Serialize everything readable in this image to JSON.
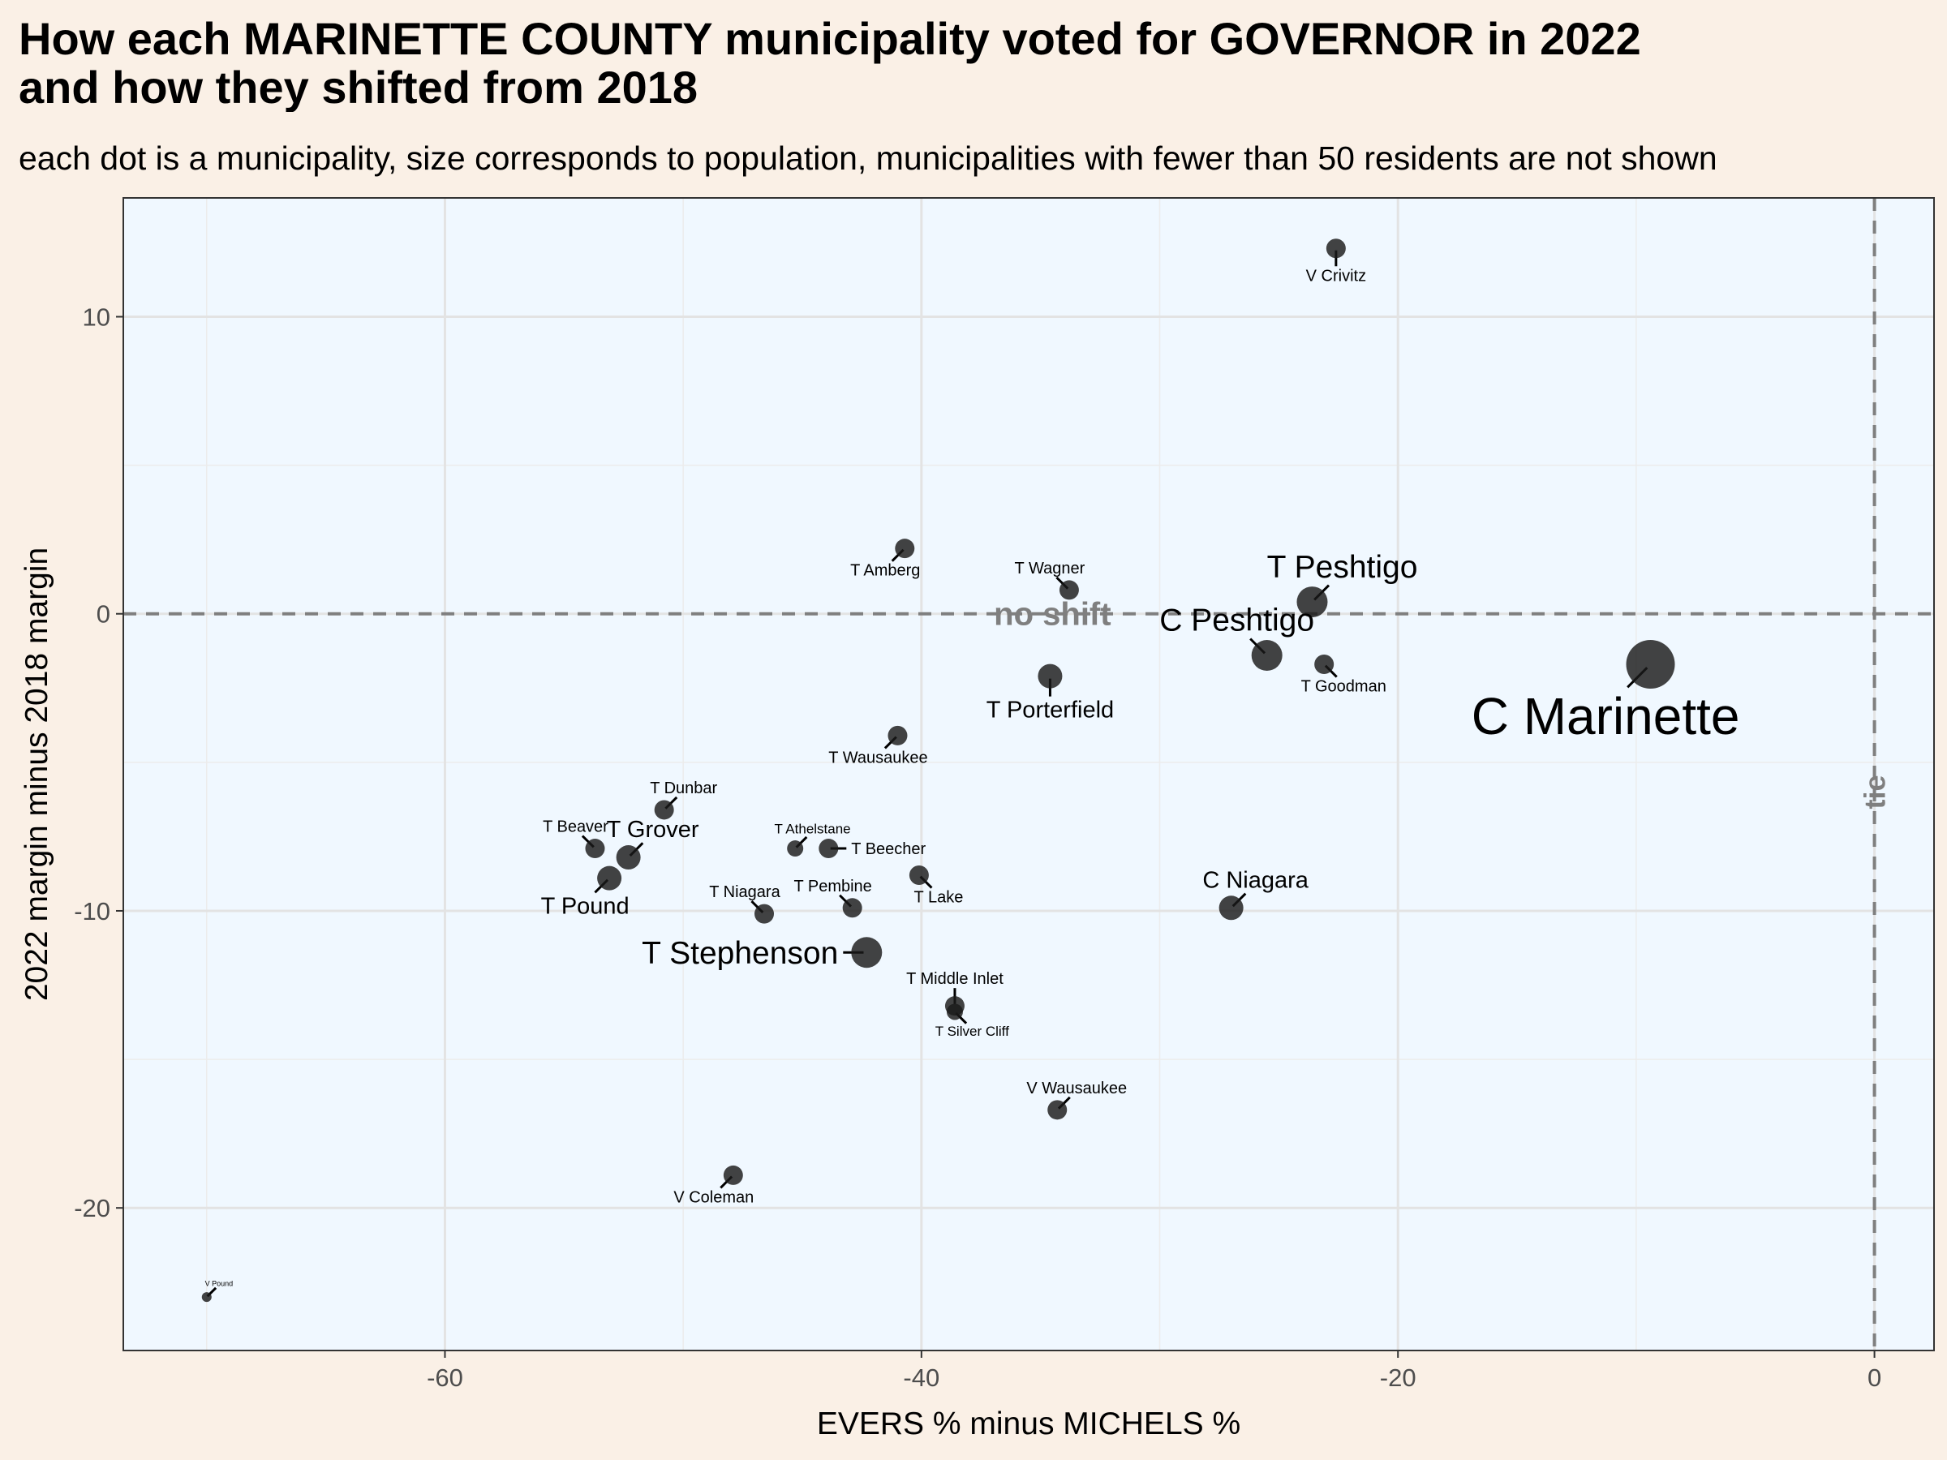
{
  "title_lines": [
    "How each MARINETTE COUNTY municipality voted for GOVERNOR in 2022",
    "and how they shifted from 2018"
  ],
  "subtitle": "each dot is a municipality, size corresponds to population, municipalities with fewer than 50 residents are not shown",
  "colors": {
    "page_background": "#faf0e6",
    "panel_background": "#f0f8ff",
    "point_fill": "#1a1a1a",
    "reference_line": "#7f7f7f"
  },
  "chart_data": {
    "type": "scatter",
    "xlabel": "EVERS % minus MICHELS %",
    "ylabel": "2022 margin minus 2018 margin",
    "xlim": [
      -73.5,
      2.5
    ],
    "ylim": [
      -24.8,
      14
    ],
    "x_ticks": [
      -60,
      -40,
      -20,
      0
    ],
    "y_ticks": [
      -20,
      -10,
      0,
      10
    ],
    "grid": true,
    "reference_lines": [
      {
        "orientation": "horizontal",
        "value": 0,
        "label": "no shift",
        "style": "dashed"
      },
      {
        "orientation": "vertical",
        "value": 0,
        "label": "tie",
        "style": "dashed"
      }
    ],
    "points": [
      {
        "name": "V Crivitz",
        "x": -22.6,
        "y": 12.3,
        "size": "small",
        "label_dir": "below"
      },
      {
        "name": "T Amberg",
        "x": -40.7,
        "y": 2.2,
        "size": "small",
        "label_dir": "below-left"
      },
      {
        "name": "T Wagner",
        "x": -33.8,
        "y": 0.8,
        "size": "small",
        "label_dir": "above-left"
      },
      {
        "name": "T Peshtigo",
        "x": -23.6,
        "y": 0.4,
        "size": "large",
        "label_dir": "above-right"
      },
      {
        "name": "C Peshtigo",
        "x": -25.5,
        "y": -1.4,
        "size": "large",
        "label_dir": "above-left"
      },
      {
        "name": "T Goodman",
        "x": -23.1,
        "y": -1.7,
        "size": "small",
        "label_dir": "below-right"
      },
      {
        "name": "C Marinette",
        "x": -9.4,
        "y": -1.7,
        "size": "xlarge",
        "label_dir": "below-left"
      },
      {
        "name": "T Porterfield",
        "x": -34.6,
        "y": -2.1,
        "size": "medium",
        "label_dir": "below"
      },
      {
        "name": "T Wausaukee",
        "x": -41.0,
        "y": -4.1,
        "size": "small",
        "label_dir": "below-left"
      },
      {
        "name": "T Dunbar",
        "x": -50.8,
        "y": -6.6,
        "size": "small",
        "label_dir": "above-right"
      },
      {
        "name": "T Athelstane",
        "x": -45.3,
        "y": -7.9,
        "size": "tiny",
        "label_dir": "above-right"
      },
      {
        "name": "T Beecher",
        "x": -43.9,
        "y": -7.9,
        "size": "small",
        "label_dir": "right"
      },
      {
        "name": "T Beaver",
        "x": -53.7,
        "y": -7.9,
        "size": "small",
        "label_dir": "above-left"
      },
      {
        "name": "T Grover",
        "x": -52.3,
        "y": -8.2,
        "size": "medium",
        "label_dir": "above-right"
      },
      {
        "name": "T Pound",
        "x": -53.1,
        "y": -8.9,
        "size": "medium",
        "label_dir": "below-left"
      },
      {
        "name": "T Lake",
        "x": -40.1,
        "y": -8.8,
        "size": "small",
        "label_dir": "below-right"
      },
      {
        "name": "T Pembine",
        "x": -42.9,
        "y": -9.9,
        "size": "small",
        "label_dir": "above-left"
      },
      {
        "name": "C Niagara",
        "x": -27.0,
        "y": -9.9,
        "size": "medium",
        "label_dir": "above-right"
      },
      {
        "name": "T Niagara",
        "x": -46.6,
        "y": -10.1,
        "size": "small",
        "label_dir": "above-left"
      },
      {
        "name": "T Stephenson",
        "x": -42.3,
        "y": -11.4,
        "size": "large",
        "label_dir": "left"
      },
      {
        "name": "T Middle Inlet",
        "x": -38.6,
        "y": -13.2,
        "size": "small",
        "label_dir": "above"
      },
      {
        "name": "T Silver Cliff",
        "x": -38.6,
        "y": -13.4,
        "size": "tiny",
        "label_dir": "below-right"
      },
      {
        "name": "V Wausaukee",
        "x": -34.3,
        "y": -16.7,
        "size": "small",
        "label_dir": "above-right"
      },
      {
        "name": "V Coleman",
        "x": -47.9,
        "y": -18.9,
        "size": "small",
        "label_dir": "below-left"
      },
      {
        "name": "V Pound",
        "x": -70.0,
        "y": -23.0,
        "size": "micro",
        "label_dir": "above-right"
      }
    ]
  }
}
